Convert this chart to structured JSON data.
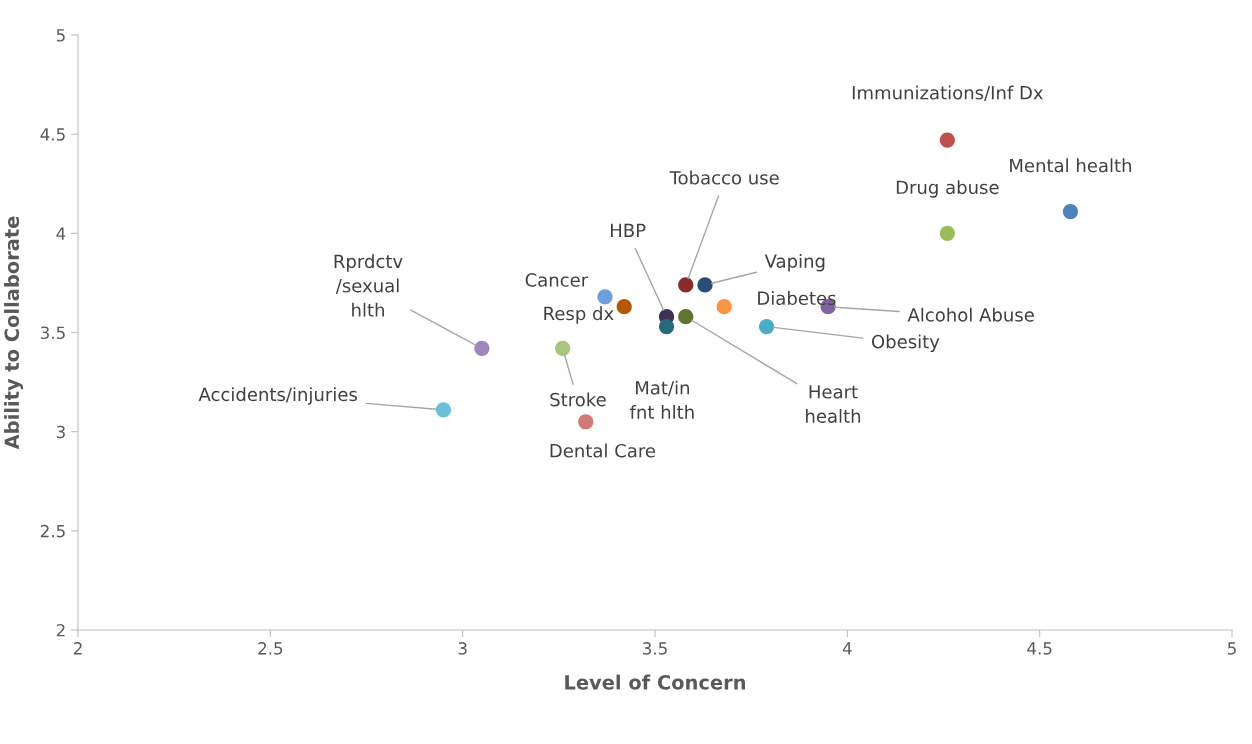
{
  "chart_data": {
    "type": "scatter",
    "xlabel": "Level of Concern",
    "ylabel": "Ability to Collaborate",
    "xlim": [
      2,
      5
    ],
    "ylim": [
      2,
      5
    ],
    "xticks": [
      2,
      2.5,
      3,
      3.5,
      4,
      4.5,
      5
    ],
    "yticks": [
      2,
      2.5,
      3,
      3.5,
      4,
      4.5,
      5
    ],
    "marker": "circle",
    "series": [
      {
        "x": [
          4.26,
          4.58,
          4.26,
          3.58,
          3.63,
          3.37,
          3.42,
          3.53,
          3.58,
          3.53,
          3.68,
          3.95,
          3.79,
          3.05,
          3.26,
          2.95,
          3.32
        ],
        "values": [
          4.47,
          4.11,
          4.0,
          3.74,
          3.74,
          3.68,
          3.63,
          3.58,
          3.58,
          3.53,
          3.63,
          3.63,
          3.53,
          3.42,
          3.42,
          3.11,
          3.05
        ],
        "colors": [
          "#c0504d",
          "#4f81bd",
          "#9bbb59",
          "#8b2a2a",
          "#2c4d75",
          "#6f9fd8",
          "#b65708",
          "#3f3151",
          "#5f7530",
          "#276a7c",
          "#f79646",
          "#8064a2",
          "#4bacc6",
          "#9c85c0",
          "#a9c47f",
          "#6cc0d6",
          "#d07a78"
        ]
      }
    ],
    "annotations": [
      {
        "text": "Immunizations/Inf Dx",
        "x": 4.26,
        "y": 4.47
      },
      {
        "text": "Mental health",
        "x": 4.58,
        "y": 4.11
      },
      {
        "text": "Drug abuse",
        "x": 4.26,
        "y": 4.0
      },
      {
        "text": "Tobacco use",
        "x": 3.58,
        "y": 3.74
      },
      {
        "text": "Vaping",
        "x": 3.63,
        "y": 3.74
      },
      {
        "text": "Cancer",
        "x": 3.37,
        "y": 3.68
      },
      {
        "text": "Resp dx",
        "x": 3.42,
        "y": 3.63
      },
      {
        "text": "HBP",
        "x": 3.53,
        "y": 3.58
      },
      {
        "text": "Heart\nhealth",
        "x": 3.58,
        "y": 3.58
      },
      {
        "text": "Mat/in\nfnt hlth",
        "x": 3.53,
        "y": 3.53
      },
      {
        "text": "Diabetes",
        "x": 3.68,
        "y": 3.63
      },
      {
        "text": "Alcohol Abuse",
        "x": 3.95,
        "y": 3.63
      },
      {
        "text": "Obesity",
        "x": 3.79,
        "y": 3.53
      },
      {
        "text": "Rprdctv\n/sexual\nhlth",
        "x": 3.05,
        "y": 3.42
      },
      {
        "text": "Stroke",
        "x": 3.26,
        "y": 3.42
      },
      {
        "text": "Accidents/injuries",
        "x": 2.95,
        "y": 3.11
      },
      {
        "text": "Dental Care",
        "x": 3.32,
        "y": 3.05
      }
    ]
  }
}
